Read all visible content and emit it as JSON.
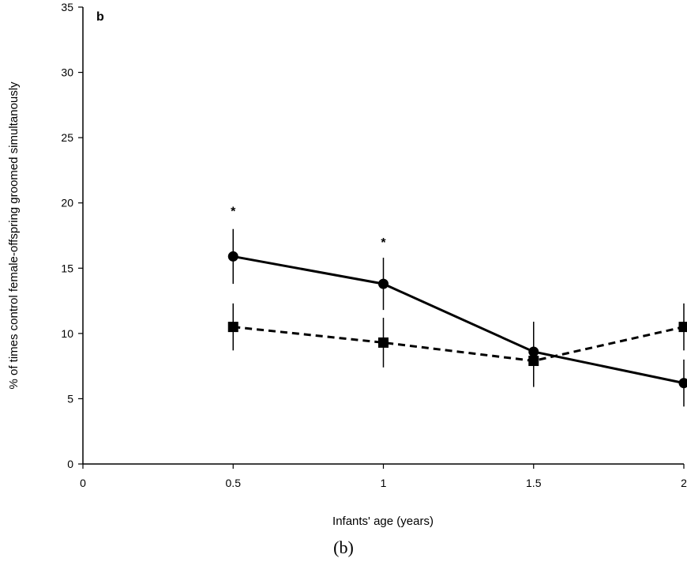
{
  "panel_label": "b",
  "caption": "(b)",
  "chart_data": {
    "type": "line",
    "xlabel": "Infants' age (years)",
    "ylabel": "% of times control female-offspring groomed simultanously",
    "xlim": [
      0,
      2
    ],
    "ylim": [
      0,
      35
    ],
    "x_ticks": [
      "0",
      "0.5",
      "1",
      "1.5",
      "2"
    ],
    "y_ticks": [
      "0",
      "5",
      "10",
      "15",
      "20",
      "25",
      "30",
      "35"
    ],
    "grid": false,
    "legend": "none",
    "series": [
      {
        "marker": "circle",
        "line_style": "solid",
        "color": "#000000",
        "x": [
          0.5,
          1,
          1.5,
          2
        ],
        "values": [
          15.9,
          13.8,
          8.6,
          6.2
        ],
        "error": [
          2.1,
          2.0,
          2.3,
          1.8
        ]
      },
      {
        "marker": "square",
        "line_style": "dashed",
        "color": "#000000",
        "x": [
          0.5,
          1,
          1.5,
          2
        ],
        "values": [
          10.5,
          9.3,
          7.9,
          10.5
        ],
        "error": [
          1.8,
          1.9,
          2.0,
          1.8
        ]
      }
    ],
    "annotations": [
      {
        "text": "*",
        "x": 0.5,
        "y": 19.6
      },
      {
        "text": "*",
        "x": 1,
        "y": 17.2
      }
    ]
  }
}
